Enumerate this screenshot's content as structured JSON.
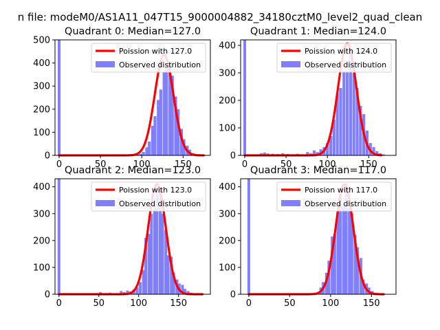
{
  "figure": {
    "suptitle": "n file: modeM0/AS1A11_047T15_9000004882_34180cztM0_level2_quad_clean"
  },
  "colors": {
    "poisson": "#ff0000",
    "observed": "#8080ff",
    "axis": "#000000",
    "background": "#ffffff"
  },
  "chart_data": [
    {
      "type": "bar",
      "title": "Quadrant 0: Median=127.0",
      "median": 127.0,
      "xlim": [
        -5,
        183
      ],
      "ylim": [
        0,
        500
      ],
      "xticks": [
        0,
        50,
        100,
        150
      ],
      "yticks": [
        0,
        100,
        200,
        300,
        400,
        500
      ],
      "legend": {
        "position": "top-right",
        "poisson_label": "Poission with 127.0",
        "observed_label": "Observed distribution"
      },
      "bin_width": 3.5,
      "zero_spike": 500,
      "bars": [
        [
          85,
          2
        ],
        [
          88,
          3
        ],
        [
          92,
          2
        ],
        [
          95,
          4
        ],
        [
          99,
          7
        ],
        [
          102,
          15
        ],
        [
          106,
          35
        ],
        [
          109,
          60
        ],
        [
          113,
          128
        ],
        [
          116,
          170
        ],
        [
          120,
          240
        ],
        [
          123,
          285
        ],
        [
          127,
          360
        ],
        [
          130,
          380
        ],
        [
          134,
          395
        ],
        [
          137,
          345
        ],
        [
          141,
          255
        ],
        [
          144,
          200
        ],
        [
          148,
          115
        ],
        [
          151,
          70
        ],
        [
          155,
          42
        ],
        [
          158,
          25
        ],
        [
          162,
          10
        ],
        [
          165,
          5
        ],
        [
          169,
          3
        ],
        [
          172,
          2
        ]
      ],
      "curve": {
        "mu": 127,
        "sigma": 11.27,
        "peak": 435,
        "x_start": 0,
        "x_end": 175
      }
    },
    {
      "type": "bar",
      "title": "Quadrant 1: Median=124.0",
      "median": 124.0,
      "xlim": [
        -5,
        183
      ],
      "ylim": [
        0,
        420
      ],
      "xticks": [
        0,
        50,
        100,
        150
      ],
      "yticks": [
        0,
        100,
        200,
        300,
        400
      ],
      "legend": {
        "position": "top-right",
        "poisson_label": "Poission with 124.0",
        "observed_label": "Observed distribution"
      },
      "bin_width": 3.5,
      "zero_spike": 420,
      "bars": [
        [
          20,
          8
        ],
        [
          24,
          10
        ],
        [
          28,
          7
        ],
        [
          34,
          6
        ],
        [
          40,
          5
        ],
        [
          46,
          8
        ],
        [
          52,
          5
        ],
        [
          58,
          4
        ],
        [
          64,
          6
        ],
        [
          70,
          4
        ],
        [
          76,
          12
        ],
        [
          80,
          8
        ],
        [
          84,
          18
        ],
        [
          88,
          12
        ],
        [
          92,
          22
        ],
        [
          96,
          30
        ],
        [
          100,
          45
        ],
        [
          104,
          70
        ],
        [
          108,
          130
        ],
        [
          112,
          225
        ],
        [
          116,
          245
        ],
        [
          120,
          305
        ],
        [
          124,
          305
        ],
        [
          128,
          375
        ],
        [
          132,
          300
        ],
        [
          136,
          245
        ],
        [
          140,
          180
        ],
        [
          144,
          150
        ],
        [
          148,
          90
        ],
        [
          152,
          45
        ],
        [
          156,
          30
        ],
        [
          160,
          15
        ],
        [
          164,
          8
        ],
        [
          168,
          4
        ]
      ],
      "curve": {
        "mu": 124,
        "sigma": 11.14,
        "peak": 407,
        "x_start": 0,
        "x_end": 165
      }
    },
    {
      "type": "bar",
      "title": "Quadrant 2: Median=123.0",
      "median": 123.0,
      "xlim": [
        -5,
        190
      ],
      "ylim": [
        0,
        430
      ],
      "xticks": [
        0,
        50,
        100,
        150
      ],
      "yticks": [
        0,
        100,
        200,
        300,
        400
      ],
      "legend": {
        "position": "top-right",
        "poisson_label": "Poission with 123.0",
        "observed_label": "Observed distribution"
      },
      "bin_width": 3.5,
      "zero_spike": 430,
      "bars": [
        [
          52,
          8
        ],
        [
          58,
          4
        ],
        [
          64,
          6
        ],
        [
          70,
          3
        ],
        [
          78,
          12
        ],
        [
          82,
          8
        ],
        [
          86,
          14
        ],
        [
          90,
          10
        ],
        [
          94,
          18
        ],
        [
          98,
          26
        ],
        [
          102,
          45
        ],
        [
          106,
          90
        ],
        [
          109,
          210
        ],
        [
          113,
          225
        ],
        [
          116,
          300
        ],
        [
          120,
          330
        ],
        [
          123,
          405
        ],
        [
          127,
          390
        ],
        [
          130,
          300
        ],
        [
          134,
          240
        ],
        [
          137,
          145
        ],
        [
          141,
          140
        ],
        [
          144,
          80
        ],
        [
          148,
          55
        ],
        [
          151,
          40
        ],
        [
          155,
          35
        ],
        [
          158,
          20
        ],
        [
          162,
          12
        ],
        [
          166,
          6
        ],
        [
          170,
          3
        ]
      ],
      "curve": {
        "mu": 123,
        "sigma": 11.09,
        "peak": 410,
        "x_start": 0,
        "x_end": 180
      }
    },
    {
      "type": "bar",
      "title": "Quadrant 3: Median=117.0",
      "median": 117.0,
      "xlim": [
        -10,
        180
      ],
      "ylim": [
        0,
        430
      ],
      "xticks": [
        0,
        50,
        100,
        150
      ],
      "yticks": [
        0,
        100,
        200,
        300,
        400
      ],
      "legend": {
        "position": "top-right",
        "poisson_label": "Poission with 117.0",
        "observed_label": "Observed distribution"
      },
      "bin_width": 3.5,
      "zero_spike": 430,
      "bars": [
        [
          88,
          25
        ],
        [
          91,
          45
        ],
        [
          95,
          80
        ],
        [
          98,
          125
        ],
        [
          102,
          215
        ],
        [
          105,
          225
        ],
        [
          109,
          310
        ],
        [
          112,
          380
        ],
        [
          116,
          330
        ],
        [
          119,
          410
        ],
        [
          123,
          320
        ],
        [
          126,
          300
        ],
        [
          130,
          220
        ],
        [
          133,
          175
        ],
        [
          137,
          135
        ],
        [
          140,
          55
        ],
        [
          144,
          40
        ],
        [
          147,
          25
        ],
        [
          151,
          12
        ],
        [
          155,
          6
        ],
        [
          158,
          3
        ]
      ],
      "curve": {
        "mu": 117,
        "sigma": 10.82,
        "peak": 410,
        "x_start": 0,
        "x_end": 165
      }
    }
  ]
}
